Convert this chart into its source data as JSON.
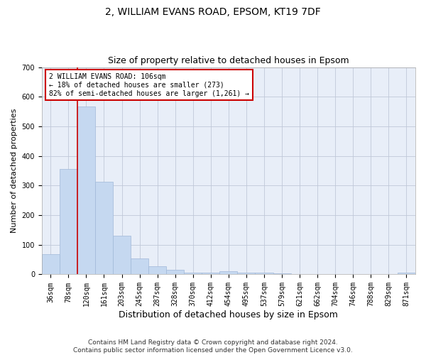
{
  "title1": "2, WILLIAM EVANS ROAD, EPSOM, KT19 7DF",
  "title2": "Size of property relative to detached houses in Epsom",
  "xlabel": "Distribution of detached houses by size in Epsom",
  "ylabel": "Number of detached properties",
  "categories": [
    "36sqm",
    "78sqm",
    "120sqm",
    "161sqm",
    "203sqm",
    "245sqm",
    "287sqm",
    "328sqm",
    "370sqm",
    "412sqm",
    "454sqm",
    "495sqm",
    "537sqm",
    "579sqm",
    "621sqm",
    "662sqm",
    "704sqm",
    "746sqm",
    "788sqm",
    "829sqm",
    "871sqm"
  ],
  "values": [
    68,
    355,
    568,
    313,
    130,
    55,
    27,
    16,
    7,
    5,
    10,
    5,
    5,
    4,
    0,
    0,
    0,
    0,
    0,
    0,
    5
  ],
  "bar_color": "#c5d8f0",
  "bar_edge_color": "#a0b8d8",
  "red_line_x": 1.5,
  "annotation_text": "2 WILLIAM EVANS ROAD: 106sqm\n← 18% of detached houses are smaller (273)\n82% of semi-detached houses are larger (1,261) →",
  "annotation_box_color": "#ffffff",
  "annotation_box_edge": "#cc0000",
  "red_line_color": "#cc0000",
  "grid_color": "#c0c8d8",
  "bg_color": "#e8eef8",
  "ylim": [
    0,
    700
  ],
  "yticks": [
    0,
    100,
    200,
    300,
    400,
    500,
    600,
    700
  ],
  "footer": "Contains HM Land Registry data © Crown copyright and database right 2024.\nContains public sector information licensed under the Open Government Licence v3.0.",
  "title1_fontsize": 10,
  "title2_fontsize": 9,
  "xlabel_fontsize": 9,
  "ylabel_fontsize": 8,
  "tick_fontsize": 7,
  "footer_fontsize": 6.5
}
